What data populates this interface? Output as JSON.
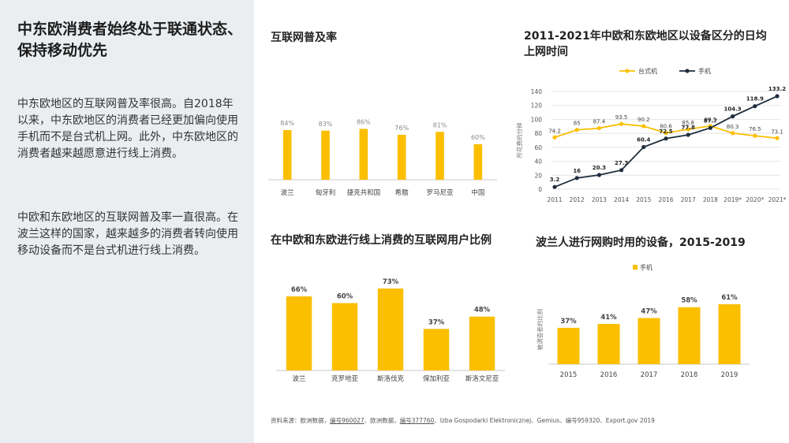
{
  "left_panel": {
    "headline": "中东欧消费者始终处于联通状态、保持移动优先",
    "paragraph1": "中东欧地区的互联网普及率很高。自2018年以来，中东欧地区的消费者已经更加偏向使用手机而不是台式机上网。此外，中东欧地区的消费者越来越愿意进行线上消费。",
    "paragraph2": "中欧和东欧地区的互联网普及率一直很高。在波兰这样的国家，越来越多的消费者转向使用移动设备而不是台式机进行线上消费。"
  },
  "colors": {
    "accent": "#fbbf00",
    "mobile_line": "#1f2d3d",
    "panel_bg": "#ebeef1"
  },
  "chart_data": [
    {
      "id": "internet_penetration",
      "type": "bar",
      "title": "互联网普及率",
      "categories": [
        "波兰",
        "匈牙利",
        "捷克共和国",
        "希腊",
        "罗马尼亚",
        "中国"
      ],
      "values": [
        84,
        83,
        86,
        76,
        81,
        60
      ],
      "value_labels": [
        "84%",
        "83%",
        "86%",
        "76%",
        "81%",
        "60%"
      ],
      "ylim": [
        0,
        100
      ],
      "grid": false
    },
    {
      "id": "daily_time_by_device",
      "type": "line",
      "title": "2011-2021年中欧和东欧地区以设备区分的日均上网时间",
      "x": [
        "2011",
        "2012",
        "2013",
        "2014",
        "2015",
        "2016",
        "2017",
        "2018",
        "2019*",
        "2020*",
        "2021*"
      ],
      "ylabel": "所花费的分钟",
      "ylim": [
        0,
        140
      ],
      "yticks": [
        "0",
        "20",
        "40",
        "60",
        "80",
        "100",
        "120",
        "140"
      ],
      "legend_position": "top",
      "grid": true,
      "series": [
        {
          "name": "台式机",
          "values": [
            74.2,
            85,
            87.4,
            93.5,
            90.2,
            80.6,
            85.8,
            90.5,
            80.3,
            76.5,
            73.1
          ],
          "labels": [
            "74.2",
            "85",
            "87.4",
            "93.5",
            "90.2",
            "80.6",
            "85.8",
            "90.5",
            "80.3",
            "76.5",
            "73.1"
          ]
        },
        {
          "name": "手机",
          "values": [
            3.2,
            16,
            20.3,
            27.3,
            60.4,
            72.5,
            77.8,
            87.7,
            104.3,
            118.9,
            133.2
          ],
          "labels": [
            "3.2",
            "16",
            "20.3",
            "27.3",
            "60.4",
            "72.5",
            "77.8",
            "87.7",
            "104.3",
            "118.9",
            "133.2"
          ]
        }
      ]
    },
    {
      "id": "online_shoppers_share",
      "type": "bar",
      "title": "在中欧和东欧进行线上消费的互联网用户比例",
      "categories": [
        "波兰",
        "克罗地亚",
        "斯洛伐克",
        "保加利亚",
        "斯洛文尼亚"
      ],
      "values": [
        66,
        60,
        73,
        37,
        48
      ],
      "value_labels": [
        "66%",
        "60%",
        "73%",
        "37%",
        "48%"
      ],
      "ylim": [
        0,
        80
      ],
      "grid": false
    },
    {
      "id": "poland_shopping_device",
      "type": "bar",
      "title": "波兰人进行网购时用的设备，2015-2019",
      "categories": [
        "2015",
        "2016",
        "2017",
        "2018",
        "2019"
      ],
      "ylabel": "被调查者的比例",
      "legend_position": "top",
      "series": [
        {
          "name": "手机",
          "values": [
            37,
            41,
            47,
            58,
            61
          ],
          "labels": [
            "37%",
            "41%",
            "47%",
            "58%",
            "61%"
          ]
        }
      ],
      "ylim": [
        0,
        100
      ],
      "grid": false
    }
  ],
  "source": {
    "prefix": "资料来源：欧洲数据，",
    "link1": "编号960027",
    "mid1": "、欧洲数据，",
    "link2": "编号377760",
    "rest": "、Izba Gospodarki Elektronicznej、Gemius、编号959320、Export.gov 2019"
  }
}
